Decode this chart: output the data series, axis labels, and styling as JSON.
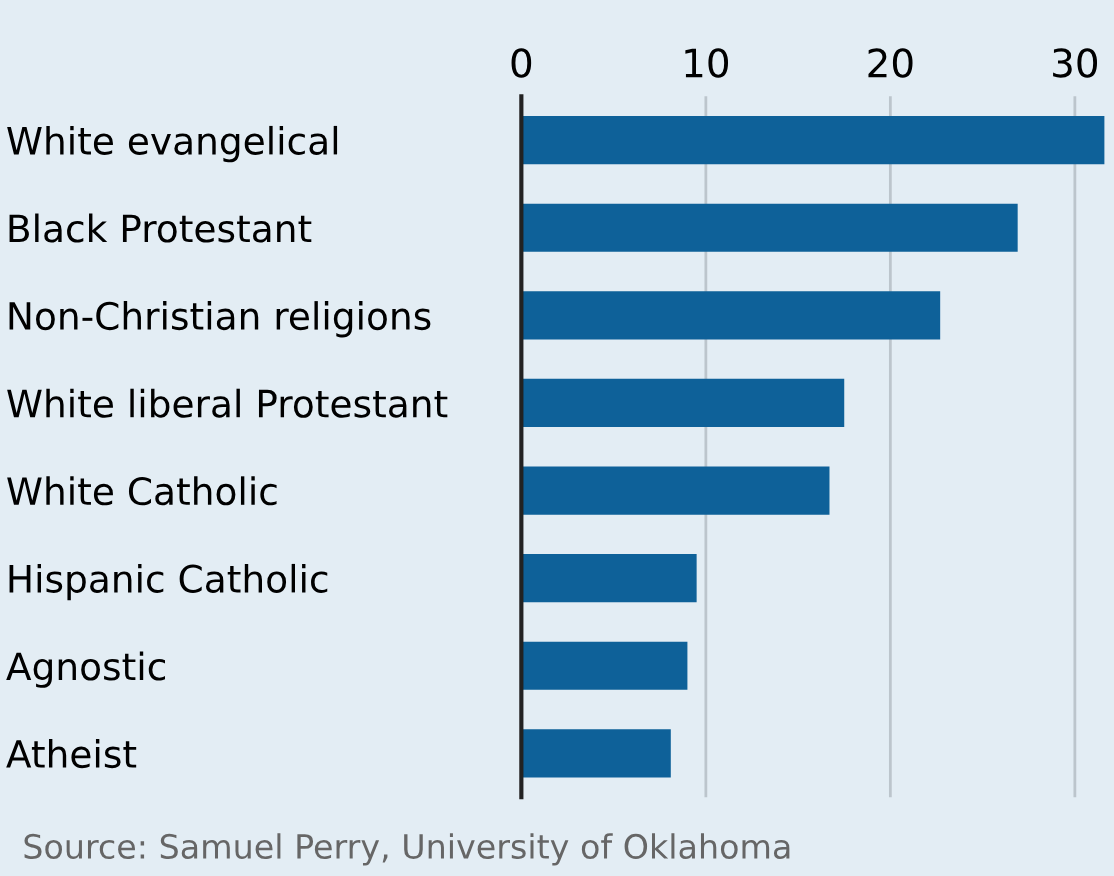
{
  "chart_data": {
    "type": "bar",
    "orientation": "horizontal",
    "categories": [
      "White evangelical",
      "Black Protestant",
      "Non-Christian religions",
      "White liberal Protestant",
      "White Catholic",
      "Hispanic Catholic",
      "Agnostic",
      "Atheist"
    ],
    "values": [
      31.6,
      26.9,
      22.7,
      17.5,
      16.7,
      9.5,
      9.0,
      8.1
    ],
    "color": "#0e6199",
    "xlim": [
      0,
      32
    ],
    "xticks": [
      0,
      10,
      20,
      30
    ],
    "grid": "x",
    "annotations": [
      "Source: Samuel Perry, University of Oklahoma"
    ]
  }
}
